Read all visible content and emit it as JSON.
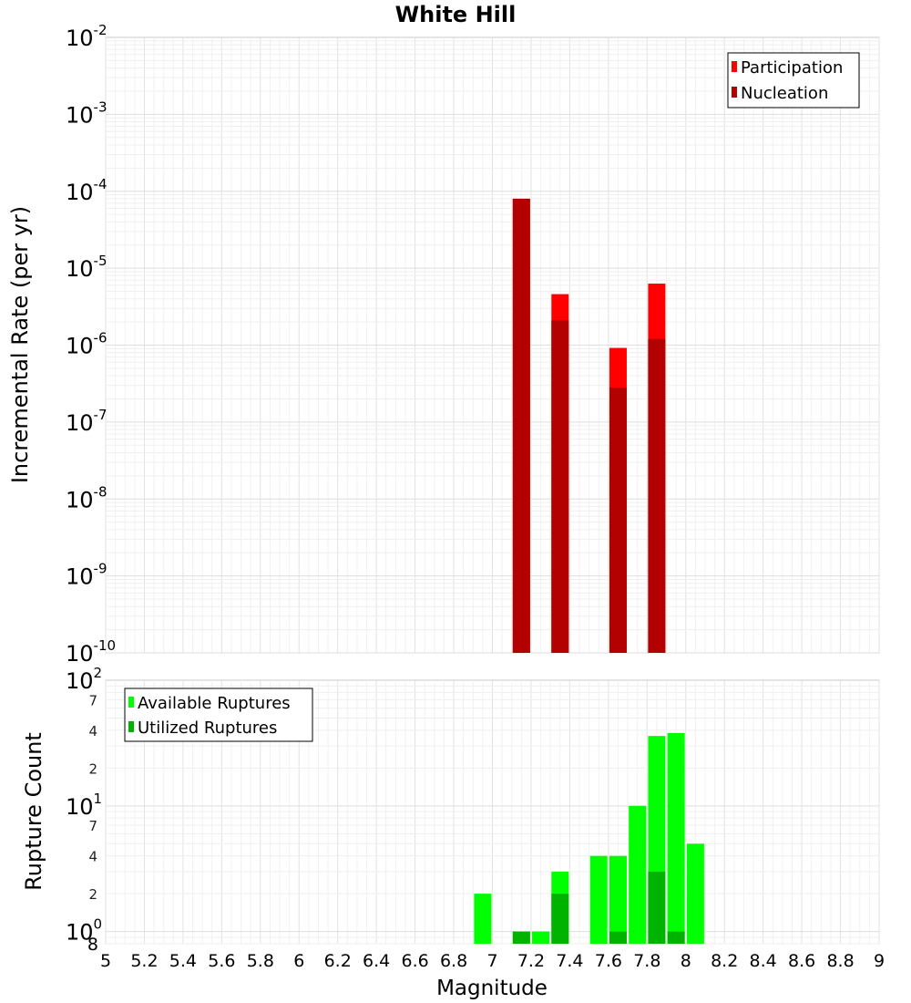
{
  "chart_data": {
    "title": "White Hill",
    "xlabel": "Magnitude",
    "xlim": [
      5,
      9
    ],
    "x_ticks": [
      "5",
      "5.2",
      "5.4",
      "5.6",
      "5.8",
      "6",
      "6.2",
      "6.4",
      "6.6",
      "6.8",
      "7",
      "7.2",
      "7.4",
      "7.6",
      "7.8",
      "8",
      "8.2",
      "8.4",
      "8.6",
      "8.8",
      "9"
    ],
    "grid": true,
    "panels": [
      {
        "type": "bar",
        "ylabel": "Incremental Rate (per yr)",
        "yscale": "log",
        "ylim": [
          1e-10,
          0.01
        ],
        "legend_position": "top-right",
        "series": [
          {
            "name": "Participation",
            "color": "#ff0000",
            "points": [
              {
                "x": 7.15,
                "y": 8e-05
              },
              {
                "x": 7.35,
                "y": 4.6e-06
              },
              {
                "x": 7.65,
                "y": 9.2e-07
              },
              {
                "x": 7.85,
                "y": 6.3e-06
              }
            ]
          },
          {
            "name": "Nucleation",
            "color": "#b30000",
            "points": [
              {
                "x": 7.15,
                "y": 8e-05
              },
              {
                "x": 7.35,
                "y": 2.1e-06
              },
              {
                "x": 7.65,
                "y": 2.8e-07
              },
              {
                "x": 7.85,
                "y": 1.2e-06
              }
            ]
          }
        ]
      },
      {
        "type": "bar",
        "ylabel": "Rupture Count",
        "yscale": "log",
        "ylim": [
          0.8,
          100
        ],
        "bottom_label": "8",
        "minor_tick_labels": [
          "2",
          "4",
          "7"
        ],
        "legend_position": "top-left",
        "series": [
          {
            "name": "Available Ruptures",
            "color": "#00ff00",
            "points": [
              {
                "x": 6.95,
                "y": 2
              },
              {
                "x": 7.15,
                "y": 1
              },
              {
                "x": 7.25,
                "y": 1
              },
              {
                "x": 7.35,
                "y": 3
              },
              {
                "x": 7.55,
                "y": 4
              },
              {
                "x": 7.65,
                "y": 4
              },
              {
                "x": 7.75,
                "y": 10
              },
              {
                "x": 7.85,
                "y": 36
              },
              {
                "x": 7.95,
                "y": 38
              },
              {
                "x": 8.05,
                "y": 5
              }
            ]
          },
          {
            "name": "Utilized Ruptures",
            "color": "#00b300",
            "points": [
              {
                "x": 7.15,
                "y": 1
              },
              {
                "x": 7.35,
                "y": 2
              },
              {
                "x": 7.65,
                "y": 1
              },
              {
                "x": 7.85,
                "y": 3
              },
              {
                "x": 7.95,
                "y": 1
              }
            ]
          }
        ]
      }
    ]
  }
}
